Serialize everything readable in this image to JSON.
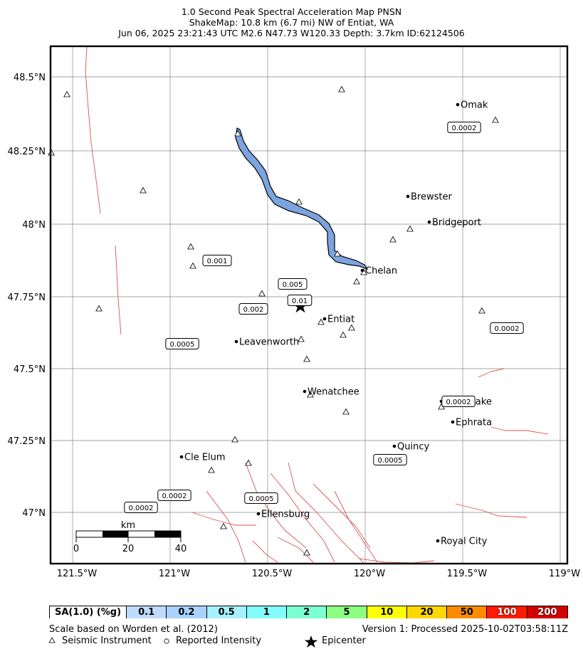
{
  "title": {
    "line1": "1.0 Second Peak Spectral Acceleration Map PNSN",
    "line2": "ShakeMap: 10.8 km (6.7 mi) NW of Entiat, WA",
    "line3": "Jun 06, 2025 23:21:43 UTC M2.6 N47.73 W120.33 Depth: 3.7km ID:62124506"
  },
  "axes": {
    "lat_ticks": [
      "48.5°N",
      "48.25°N",
      "48°N",
      "47.75°N",
      "47.5°N",
      "47.25°N",
      "47°N"
    ],
    "lon_ticks": [
      "121.5°W",
      "121°W",
      "120.5°W",
      "120°W",
      "119.5°W",
      "119°W"
    ]
  },
  "cities": [
    {
      "name": "Omak"
    },
    {
      "name": "Brewster"
    },
    {
      "name": "Bridgeport"
    },
    {
      "name": "Chelan"
    },
    {
      "name": "Entiat"
    },
    {
      "name": "Leavenworth"
    },
    {
      "name": "Wenatchee"
    },
    {
      "name": "Soap Lake"
    },
    {
      "name": "Ephrata"
    },
    {
      "name": "Quincy"
    },
    {
      "name": "Cle Elum"
    },
    {
      "name": "Ellensburg"
    },
    {
      "name": "Royal City"
    }
  ],
  "contour_labels": [
    "0.0002",
    "0.001",
    "0.005",
    "0.01",
    "0.002",
    "0.0005",
    "0.0002",
    "0.0002",
    "0.0005",
    "0.0002",
    "0.0002",
    "0.0005"
  ],
  "scale_bar": {
    "unit": "km",
    "ticks": [
      "0",
      "20",
      "40"
    ]
  },
  "colorbar": {
    "label": "SA(1.0) (%g)",
    "bins": [
      {
        "value": "0.1",
        "color": "#bfdcff"
      },
      {
        "value": "0.2",
        "color": "#a9d2ff"
      },
      {
        "value": "0.5",
        "color": "#a7f0ff"
      },
      {
        "value": "1",
        "color": "#82fcff"
      },
      {
        "value": "2",
        "color": "#7cffd3"
      },
      {
        "value": "5",
        "color": "#8cff82"
      },
      {
        "value": "10",
        "color": "#ffff00"
      },
      {
        "value": "20",
        "color": "#ffd700"
      },
      {
        "value": "50",
        "color": "#ff8c00"
      },
      {
        "value": "100",
        "color": "#ff1a00"
      },
      {
        "value": "200",
        "color": "#d20000"
      }
    ]
  },
  "footer": {
    "scale_note": "Scale based on Worden et al. (2012)",
    "version": "Version 1: Processed 2025-10-02T03:58:11Z",
    "legend_instrument": "Seismic Instrument",
    "legend_intensity": "Reported Intensity",
    "legend_epicenter": "Epicenter"
  },
  "colors": {
    "water": "#7ba4e0",
    "fault": "#d9534f",
    "grid": "#888888"
  }
}
